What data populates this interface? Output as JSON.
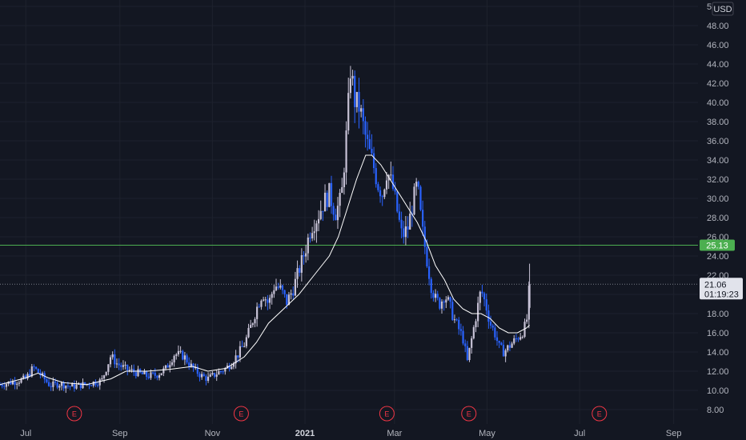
{
  "chart_data": {
    "type": "candlestick",
    "currency": "USD",
    "ylim": [
      7,
      50
    ],
    "y_ticks": [
      "8.00",
      "10.00",
      "12.00",
      "14.00",
      "16.00",
      "18.00",
      "20.00",
      "22.00",
      "24.00",
      "26.00",
      "28.00",
      "30.00",
      "32.00",
      "34.00",
      "36.00",
      "38.00",
      "40.00",
      "42.00",
      "44.00",
      "46.00",
      "48.00",
      "50"
    ],
    "x_ticks": [
      {
        "label": "Jul",
        "day": 0
      },
      {
        "label": "Sep",
        "day": 62
      },
      {
        "label": "Nov",
        "day": 123
      },
      {
        "label": "2021",
        "day": 184,
        "bold": true
      },
      {
        "label": "Mar",
        "day": 243
      },
      {
        "label": "May",
        "day": 304
      },
      {
        "label": "Jul",
        "day": 365
      },
      {
        "label": "Sep",
        "day": 427
      }
    ],
    "x_range_days": [
      -17,
      443
    ],
    "earnings_markers": {
      "text": "E",
      "days": [
        32,
        142,
        238,
        292,
        378
      ]
    },
    "horizontal_line": {
      "value": 25.13,
      "label": "25.13",
      "color": "#4caf50"
    },
    "last_price": {
      "value": 21.06,
      "label": "21.06",
      "countdown": "01:19:23"
    },
    "colors": {
      "up": "#c7c2d6",
      "down": "#2962ff",
      "ma": "#ffffff",
      "bg": "#131722",
      "grid": "#1e222d"
    },
    "series": [
      {
        "name": "price",
        "points": [
          [
            -17,
            10.6
          ],
          [
            0,
            11.2
          ],
          [
            5,
            12.4
          ],
          [
            10,
            11.6
          ],
          [
            16,
            10.5
          ],
          [
            22,
            10.7
          ],
          [
            30,
            10.4
          ],
          [
            38,
            10.6
          ],
          [
            44,
            10.8
          ],
          [
            50,
            11.0
          ],
          [
            56,
            13.6
          ],
          [
            60,
            12.8
          ],
          [
            66,
            12.2
          ],
          [
            74,
            11.8
          ],
          [
            80,
            11.5
          ],
          [
            86,
            11.6
          ],
          [
            92,
            12.2
          ],
          [
            98,
            13.8
          ],
          [
            104,
            13.6
          ],
          [
            110,
            12.3
          ],
          [
            116,
            11.5
          ],
          [
            120,
            11.2
          ],
          [
            126,
            11.8
          ],
          [
            132,
            12.3
          ],
          [
            136,
            13.0
          ],
          [
            140,
            13.8
          ],
          [
            144,
            14.8
          ],
          [
            148,
            16.5
          ],
          [
            152,
            18.5
          ],
          [
            156,
            20.2
          ],
          [
            160,
            19.0
          ],
          [
            164,
            21.0
          ],
          [
            168,
            20.5
          ],
          [
            172,
            19.2
          ],
          [
            176,
            20.5
          ],
          [
            180,
            22.5
          ],
          [
            184,
            24.5
          ],
          [
            188,
            27.0
          ],
          [
            192,
            28.0
          ],
          [
            196,
            29.5
          ],
          [
            200,
            30.5
          ],
          [
            204,
            28.5
          ],
          [
            208,
            30.0
          ],
          [
            212,
            38.0
          ],
          [
            214,
            43.5
          ],
          [
            217,
            40.0
          ],
          [
            220,
            39.5
          ],
          [
            223,
            37.0
          ],
          [
            226,
            35.0
          ],
          [
            229,
            33.5
          ],
          [
            232,
            31.5
          ],
          [
            235,
            30.5
          ],
          [
            238,
            33.0
          ],
          [
            242,
            31.0
          ],
          [
            245,
            28.5
          ],
          [
            248,
            26.0
          ],
          [
            252,
            27.0
          ],
          [
            255,
            29.5
          ],
          [
            258,
            31.5
          ],
          [
            261,
            27.0
          ],
          [
            264,
            24.0
          ],
          [
            267,
            21.0
          ],
          [
            270,
            19.5
          ],
          [
            273,
            19.0
          ],
          [
            276,
            20.0
          ],
          [
            279,
            19.0
          ],
          [
            282,
            17.5
          ],
          [
            285,
            16.5
          ],
          [
            288,
            15.5
          ],
          [
            291,
            13.0
          ],
          [
            294,
            15.5
          ],
          [
            297,
            18.0
          ],
          [
            300,
            20.5
          ],
          [
            303,
            19.0
          ],
          [
            306,
            17.0
          ],
          [
            309,
            16.0
          ],
          [
            312,
            14.5
          ],
          [
            315,
            14.0
          ],
          [
            318,
            14.5
          ],
          [
            321,
            15.0
          ],
          [
            324,
            15.5
          ],
          [
            327,
            16.0
          ],
          [
            330,
            17.0
          ],
          [
            332,
            21.0
          ]
        ]
      }
    ],
    "moving_average": [
      [
        -17,
        10.6
      ],
      [
        0,
        11.3
      ],
      [
        8,
        11.8
      ],
      [
        15,
        11.3
      ],
      [
        25,
        10.8
      ],
      [
        40,
        10.6
      ],
      [
        56,
        11.2
      ],
      [
        66,
        12.0
      ],
      [
        80,
        12.0
      ],
      [
        95,
        12.2
      ],
      [
        110,
        12.5
      ],
      [
        120,
        12.0
      ],
      [
        132,
        12.3
      ],
      [
        144,
        13.5
      ],
      [
        152,
        15.0
      ],
      [
        160,
        17.0
      ],
      [
        170,
        18.5
      ],
      [
        180,
        20.0
      ],
      [
        190,
        22.0
      ],
      [
        200,
        24.0
      ],
      [
        206,
        26.0
      ],
      [
        212,
        29.0
      ],
      [
        218,
        32.0
      ],
      [
        224,
        34.5
      ],
      [
        228,
        34.5
      ],
      [
        234,
        33.5
      ],
      [
        240,
        32.0
      ],
      [
        246,
        30.5
      ],
      [
        252,
        29.0
      ],
      [
        258,
        27.5
      ],
      [
        264,
        25.5
      ],
      [
        270,
        23.0
      ],
      [
        276,
        21.5
      ],
      [
        282,
        19.5
      ],
      [
        288,
        18.5
      ],
      [
        294,
        18.0
      ],
      [
        300,
        18.0
      ],
      [
        306,
        17.5
      ],
      [
        312,
        16.5
      ],
      [
        318,
        16.0
      ],
      [
        324,
        16.0
      ],
      [
        330,
        16.5
      ],
      [
        332,
        16.8
      ]
    ]
  }
}
